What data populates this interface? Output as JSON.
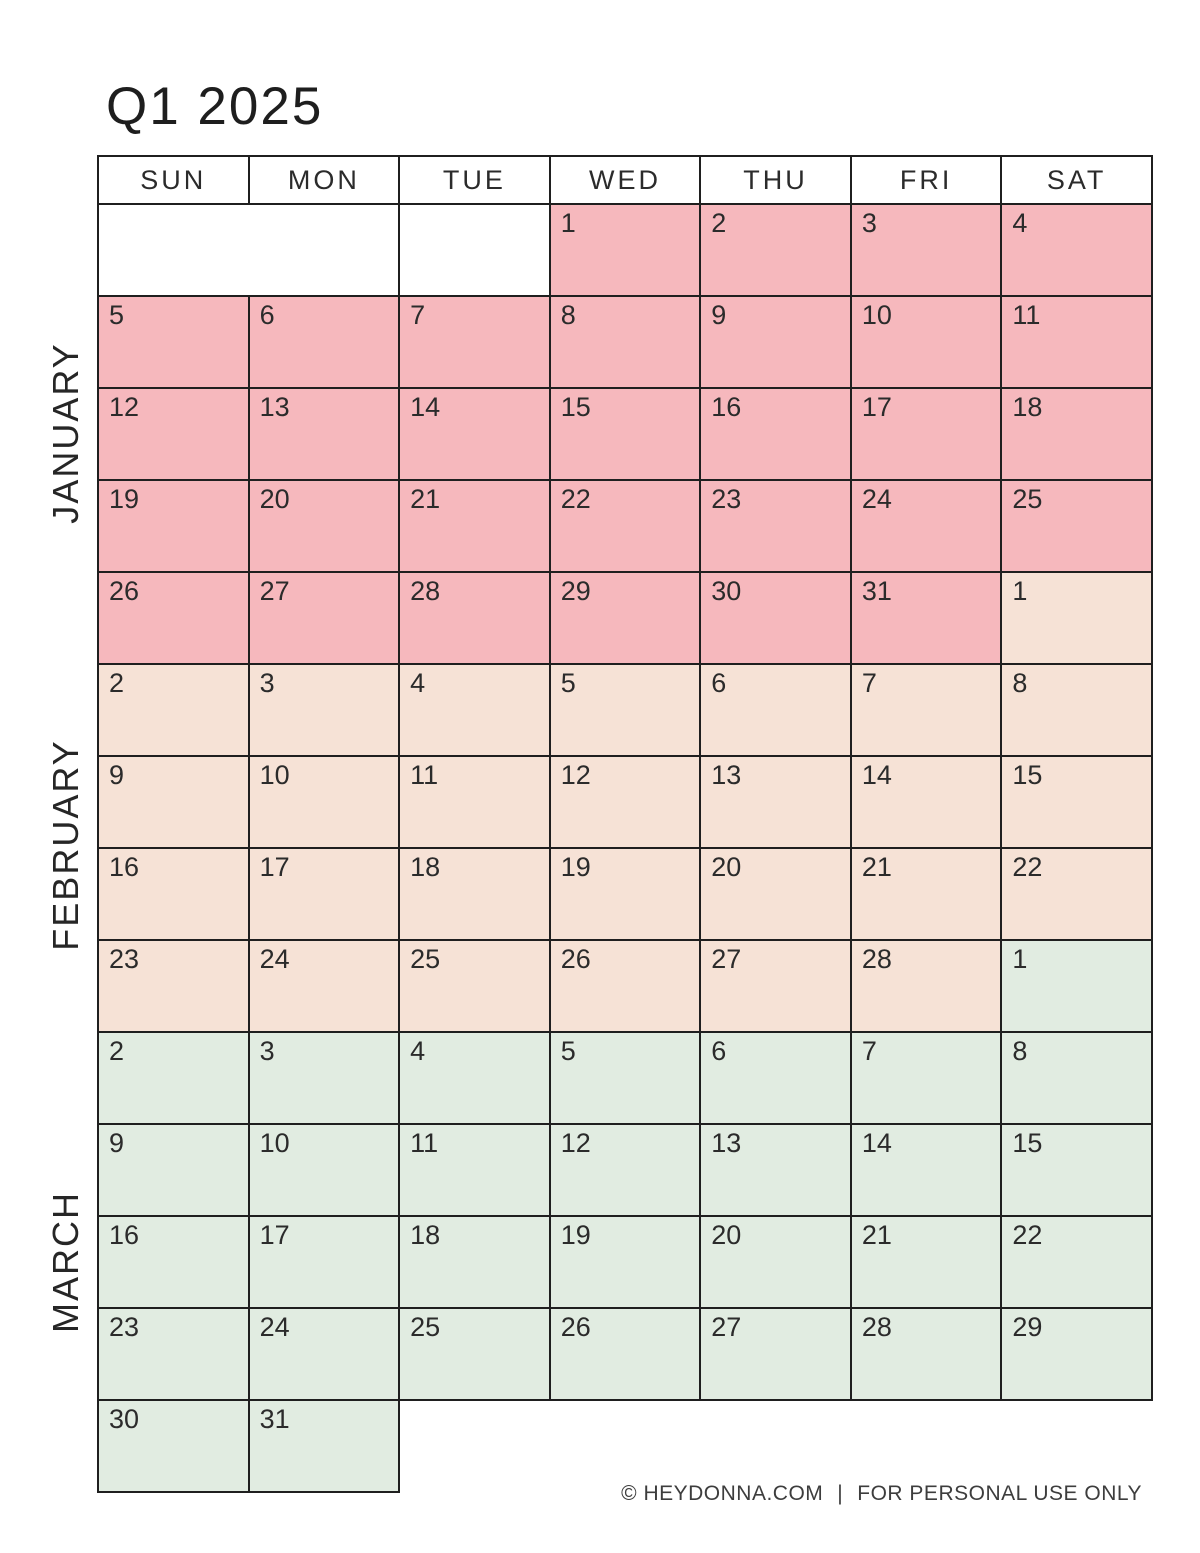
{
  "title": "Q1 2025",
  "weekdays": [
    "SUN",
    "MON",
    "TUE",
    "WED",
    "THU",
    "FRI",
    "SAT"
  ],
  "colors": {
    "january": "#f6b8bd",
    "february": "#f6e2d6",
    "march": "#e1ece1",
    "border": "#1f1f1f"
  },
  "months": [
    {
      "name": "JANUARY",
      "key": "jan"
    },
    {
      "name": "FEBRUARY",
      "key": "feb"
    },
    {
      "name": "MARCH",
      "key": "mar"
    }
  ],
  "rows": [
    {
      "cells": [
        {
          "t": "blank",
          "span": 2
        },
        {
          "t": "blank"
        },
        {
          "t": "jan",
          "d": "1"
        },
        {
          "t": "jan",
          "d": "2"
        },
        {
          "t": "jan",
          "d": "3"
        },
        {
          "t": "jan",
          "d": "4"
        }
      ]
    },
    {
      "cells": [
        {
          "t": "jan",
          "d": "5"
        },
        {
          "t": "jan",
          "d": "6"
        },
        {
          "t": "jan",
          "d": "7"
        },
        {
          "t": "jan",
          "d": "8"
        },
        {
          "t": "jan",
          "d": "9"
        },
        {
          "t": "jan",
          "d": "10"
        },
        {
          "t": "jan",
          "d": "11"
        }
      ]
    },
    {
      "cells": [
        {
          "t": "jan",
          "d": "12"
        },
        {
          "t": "jan",
          "d": "13"
        },
        {
          "t": "jan",
          "d": "14"
        },
        {
          "t": "jan",
          "d": "15"
        },
        {
          "t": "jan",
          "d": "16"
        },
        {
          "t": "jan",
          "d": "17"
        },
        {
          "t": "jan",
          "d": "18"
        }
      ]
    },
    {
      "cells": [
        {
          "t": "jan",
          "d": "19"
        },
        {
          "t": "jan",
          "d": "20"
        },
        {
          "t": "jan",
          "d": "21"
        },
        {
          "t": "jan",
          "d": "22"
        },
        {
          "t": "jan",
          "d": "23"
        },
        {
          "t": "jan",
          "d": "24"
        },
        {
          "t": "jan",
          "d": "25"
        }
      ]
    },
    {
      "cells": [
        {
          "t": "jan",
          "d": "26"
        },
        {
          "t": "jan",
          "d": "27"
        },
        {
          "t": "jan",
          "d": "28"
        },
        {
          "t": "jan",
          "d": "29"
        },
        {
          "t": "jan",
          "d": "30"
        },
        {
          "t": "jan",
          "d": "31"
        },
        {
          "t": "feb",
          "d": "1"
        }
      ]
    },
    {
      "cells": [
        {
          "t": "feb",
          "d": "2"
        },
        {
          "t": "feb",
          "d": "3"
        },
        {
          "t": "feb",
          "d": "4"
        },
        {
          "t": "feb",
          "d": "5"
        },
        {
          "t": "feb",
          "d": "6"
        },
        {
          "t": "feb",
          "d": "7"
        },
        {
          "t": "feb",
          "d": "8"
        }
      ]
    },
    {
      "cells": [
        {
          "t": "feb",
          "d": "9"
        },
        {
          "t": "feb",
          "d": "10"
        },
        {
          "t": "feb",
          "d": "11"
        },
        {
          "t": "feb",
          "d": "12"
        },
        {
          "t": "feb",
          "d": "13"
        },
        {
          "t": "feb",
          "d": "14"
        },
        {
          "t": "feb",
          "d": "15"
        }
      ]
    },
    {
      "cells": [
        {
          "t": "feb",
          "d": "16"
        },
        {
          "t": "feb",
          "d": "17"
        },
        {
          "t": "feb",
          "d": "18"
        },
        {
          "t": "feb",
          "d": "19"
        },
        {
          "t": "feb",
          "d": "20"
        },
        {
          "t": "feb",
          "d": "21"
        },
        {
          "t": "feb",
          "d": "22"
        }
      ]
    },
    {
      "cells": [
        {
          "t": "feb",
          "d": "23"
        },
        {
          "t": "feb",
          "d": "24"
        },
        {
          "t": "feb",
          "d": "25"
        },
        {
          "t": "feb",
          "d": "26"
        },
        {
          "t": "feb",
          "d": "27"
        },
        {
          "t": "feb",
          "d": "28"
        },
        {
          "t": "mar",
          "d": "1"
        }
      ]
    },
    {
      "cells": [
        {
          "t": "mar",
          "d": "2"
        },
        {
          "t": "mar",
          "d": "3"
        },
        {
          "t": "mar",
          "d": "4"
        },
        {
          "t": "mar",
          "d": "5"
        },
        {
          "t": "mar",
          "d": "6"
        },
        {
          "t": "mar",
          "d": "7"
        },
        {
          "t": "mar",
          "d": "8"
        }
      ]
    },
    {
      "cells": [
        {
          "t": "mar",
          "d": "9"
        },
        {
          "t": "mar",
          "d": "10"
        },
        {
          "t": "mar",
          "d": "11"
        },
        {
          "t": "mar",
          "d": "12"
        },
        {
          "t": "mar",
          "d": "13"
        },
        {
          "t": "mar",
          "d": "14"
        },
        {
          "t": "mar",
          "d": "15"
        }
      ]
    },
    {
      "cells": [
        {
          "t": "mar",
          "d": "16"
        },
        {
          "t": "mar",
          "d": "17"
        },
        {
          "t": "mar",
          "d": "18"
        },
        {
          "t": "mar",
          "d": "19"
        },
        {
          "t": "mar",
          "d": "20"
        },
        {
          "t": "mar",
          "d": "21"
        },
        {
          "t": "mar",
          "d": "22"
        }
      ]
    },
    {
      "cells": [
        {
          "t": "mar",
          "d": "23"
        },
        {
          "t": "mar",
          "d": "24"
        },
        {
          "t": "mar",
          "d": "25"
        },
        {
          "t": "mar",
          "d": "26"
        },
        {
          "t": "mar",
          "d": "27"
        },
        {
          "t": "mar",
          "d": "28"
        },
        {
          "t": "mar",
          "d": "29"
        }
      ]
    },
    {
      "cells": [
        {
          "t": "mar",
          "d": "30"
        },
        {
          "t": "mar",
          "d": "31"
        },
        {
          "t": "none",
          "span": 5
        }
      ]
    }
  ],
  "footer": {
    "left": "© HEYDONNA.COM",
    "divider": "|",
    "right": "FOR PERSONAL USE ONLY"
  }
}
